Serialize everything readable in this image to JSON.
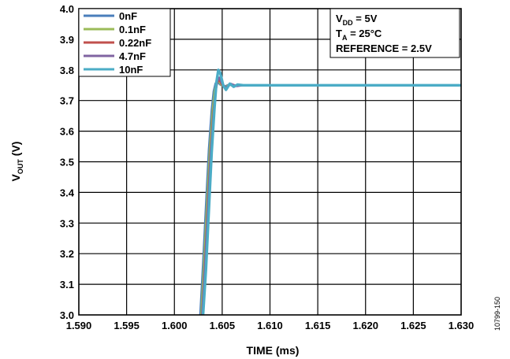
{
  "chart_data": {
    "type": "line",
    "title": "",
    "xlabel": "TIME (ms)",
    "ylabel": {
      "main": "V",
      "sub": "OUT",
      "suffix": " (V)"
    },
    "xlim": [
      1.59,
      1.63
    ],
    "ylim": [
      3.0,
      4.0
    ],
    "x_ticks": [
      1.59,
      1.595,
      1.6,
      1.605,
      1.61,
      1.615,
      1.62,
      1.625,
      1.63
    ],
    "x_tick_labels": [
      "1.590",
      "1.595",
      "1.600",
      "1.605",
      "1.610",
      "1.615",
      "1.620",
      "1.625",
      "1.630"
    ],
    "y_ticks": [
      3.0,
      3.1,
      3.2,
      3.3,
      3.4,
      3.5,
      3.6,
      3.7,
      3.8,
      3.9,
      4.0
    ],
    "y_tick_labels": [
      "3.0",
      "3.1",
      "3.2",
      "3.3",
      "3.4",
      "3.5",
      "3.6",
      "3.7",
      "3.8",
      "3.9",
      "4.0"
    ],
    "grid": true,
    "legend_position": "top-left",
    "series": [
      {
        "name": "0nF",
        "color": "#4a7ebb",
        "x": [
          1.6027,
          1.603,
          1.6033,
          1.6036,
          1.6039,
          1.6041,
          1.6043,
          1.6045,
          1.6048,
          1.6052,
          1.6057,
          1.6063,
          1.607,
          1.63
        ],
        "y": [
          3.0,
          3.17,
          3.36,
          3.54,
          3.67,
          3.73,
          3.756,
          3.762,
          3.752,
          3.745,
          3.752,
          3.748,
          3.75,
          3.75
        ]
      },
      {
        "name": "0.1nF",
        "color": "#9bbb59",
        "x": [
          1.6028,
          1.6031,
          1.6034,
          1.6037,
          1.604,
          1.6042,
          1.6044,
          1.6046,
          1.6049,
          1.6053,
          1.6058,
          1.6064,
          1.6071,
          1.63
        ],
        "y": [
          3.0,
          3.17,
          3.36,
          3.54,
          3.67,
          3.73,
          3.758,
          3.765,
          3.751,
          3.744,
          3.753,
          3.748,
          3.75,
          3.75
        ]
      },
      {
        "name": "0.22nF",
        "color": "#c0504d",
        "x": [
          1.6029,
          1.6032,
          1.6035,
          1.6038,
          1.6041,
          1.6043,
          1.6045,
          1.6047,
          1.605,
          1.6054,
          1.6059,
          1.6065,
          1.6072,
          1.63
        ],
        "y": [
          3.0,
          3.17,
          3.36,
          3.54,
          3.67,
          3.73,
          3.76,
          3.768,
          3.75,
          3.743,
          3.754,
          3.748,
          3.75,
          3.75
        ]
      },
      {
        "name": "4.7nF",
        "color": "#8064a2",
        "x": [
          1.6029,
          1.6032,
          1.6035,
          1.6038,
          1.6041,
          1.6043,
          1.6045,
          1.6047,
          1.605,
          1.6054,
          1.6059,
          1.6065,
          1.6072,
          1.63
        ],
        "y": [
          3.0,
          3.16,
          3.35,
          3.53,
          3.66,
          3.73,
          3.765,
          3.775,
          3.755,
          3.742,
          3.755,
          3.747,
          3.75,
          3.75
        ]
      },
      {
        "name": "10nF",
        "color": "#4bacc6",
        "x": [
          1.603,
          1.6033,
          1.6036,
          1.6039,
          1.6042,
          1.6044,
          1.6046,
          1.6048,
          1.6051,
          1.6054,
          1.6058,
          1.6062,
          1.6066,
          1.6072,
          1.63
        ],
        "y": [
          3.0,
          3.15,
          3.34,
          3.53,
          3.68,
          3.76,
          3.8,
          3.79,
          3.75,
          3.735,
          3.755,
          3.745,
          3.752,
          3.75,
          3.75
        ]
      }
    ],
    "annotations": [
      {
        "main": "V",
        "sub": "DD",
        "suffix": " = 5V"
      },
      {
        "main": "T",
        "sub": "A",
        "suffix": " = 25°C"
      },
      {
        "main": "REFERENCE = 2.5V",
        "sub": "",
        "suffix": ""
      }
    ],
    "figure_id": "10799-150"
  }
}
